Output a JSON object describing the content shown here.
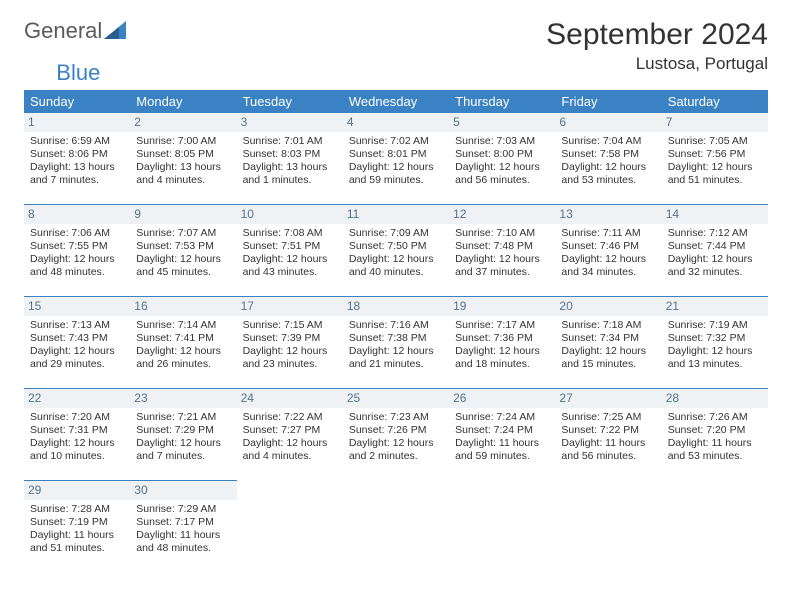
{
  "logo": {
    "word1": "General",
    "word2": "Blue"
  },
  "title": "September 2024",
  "location": "Lustosa, Portugal",
  "colors": {
    "header_bg": "#3b82c4",
    "header_text": "#ffffff",
    "daynum_bg": "#eef2f4",
    "daynum_text": "#58728c",
    "body_text": "#333333",
    "rule": "#3b82c4"
  },
  "weekdays": [
    "Sunday",
    "Monday",
    "Tuesday",
    "Wednesday",
    "Thursday",
    "Friday",
    "Saturday"
  ],
  "weeks": [
    [
      {
        "n": "1",
        "sr": "Sunrise: 6:59 AM",
        "ss": "Sunset: 8:06 PM",
        "d1": "Daylight: 13 hours",
        "d2": "and 7 minutes."
      },
      {
        "n": "2",
        "sr": "Sunrise: 7:00 AM",
        "ss": "Sunset: 8:05 PM",
        "d1": "Daylight: 13 hours",
        "d2": "and 4 minutes."
      },
      {
        "n": "3",
        "sr": "Sunrise: 7:01 AM",
        "ss": "Sunset: 8:03 PM",
        "d1": "Daylight: 13 hours",
        "d2": "and 1 minutes."
      },
      {
        "n": "4",
        "sr": "Sunrise: 7:02 AM",
        "ss": "Sunset: 8:01 PM",
        "d1": "Daylight: 12 hours",
        "d2": "and 59 minutes."
      },
      {
        "n": "5",
        "sr": "Sunrise: 7:03 AM",
        "ss": "Sunset: 8:00 PM",
        "d1": "Daylight: 12 hours",
        "d2": "and 56 minutes."
      },
      {
        "n": "6",
        "sr": "Sunrise: 7:04 AM",
        "ss": "Sunset: 7:58 PM",
        "d1": "Daylight: 12 hours",
        "d2": "and 53 minutes."
      },
      {
        "n": "7",
        "sr": "Sunrise: 7:05 AM",
        "ss": "Sunset: 7:56 PM",
        "d1": "Daylight: 12 hours",
        "d2": "and 51 minutes."
      }
    ],
    [
      {
        "n": "8",
        "sr": "Sunrise: 7:06 AM",
        "ss": "Sunset: 7:55 PM",
        "d1": "Daylight: 12 hours",
        "d2": "and 48 minutes."
      },
      {
        "n": "9",
        "sr": "Sunrise: 7:07 AM",
        "ss": "Sunset: 7:53 PM",
        "d1": "Daylight: 12 hours",
        "d2": "and 45 minutes."
      },
      {
        "n": "10",
        "sr": "Sunrise: 7:08 AM",
        "ss": "Sunset: 7:51 PM",
        "d1": "Daylight: 12 hours",
        "d2": "and 43 minutes."
      },
      {
        "n": "11",
        "sr": "Sunrise: 7:09 AM",
        "ss": "Sunset: 7:50 PM",
        "d1": "Daylight: 12 hours",
        "d2": "and 40 minutes."
      },
      {
        "n": "12",
        "sr": "Sunrise: 7:10 AM",
        "ss": "Sunset: 7:48 PM",
        "d1": "Daylight: 12 hours",
        "d2": "and 37 minutes."
      },
      {
        "n": "13",
        "sr": "Sunrise: 7:11 AM",
        "ss": "Sunset: 7:46 PM",
        "d1": "Daylight: 12 hours",
        "d2": "and 34 minutes."
      },
      {
        "n": "14",
        "sr": "Sunrise: 7:12 AM",
        "ss": "Sunset: 7:44 PM",
        "d1": "Daylight: 12 hours",
        "d2": "and 32 minutes."
      }
    ],
    [
      {
        "n": "15",
        "sr": "Sunrise: 7:13 AM",
        "ss": "Sunset: 7:43 PM",
        "d1": "Daylight: 12 hours",
        "d2": "and 29 minutes."
      },
      {
        "n": "16",
        "sr": "Sunrise: 7:14 AM",
        "ss": "Sunset: 7:41 PM",
        "d1": "Daylight: 12 hours",
        "d2": "and 26 minutes."
      },
      {
        "n": "17",
        "sr": "Sunrise: 7:15 AM",
        "ss": "Sunset: 7:39 PM",
        "d1": "Daylight: 12 hours",
        "d2": "and 23 minutes."
      },
      {
        "n": "18",
        "sr": "Sunrise: 7:16 AM",
        "ss": "Sunset: 7:38 PM",
        "d1": "Daylight: 12 hours",
        "d2": "and 21 minutes."
      },
      {
        "n": "19",
        "sr": "Sunrise: 7:17 AM",
        "ss": "Sunset: 7:36 PM",
        "d1": "Daylight: 12 hours",
        "d2": "and 18 minutes."
      },
      {
        "n": "20",
        "sr": "Sunrise: 7:18 AM",
        "ss": "Sunset: 7:34 PM",
        "d1": "Daylight: 12 hours",
        "d2": "and 15 minutes."
      },
      {
        "n": "21",
        "sr": "Sunrise: 7:19 AM",
        "ss": "Sunset: 7:32 PM",
        "d1": "Daylight: 12 hours",
        "d2": "and 13 minutes."
      }
    ],
    [
      {
        "n": "22",
        "sr": "Sunrise: 7:20 AM",
        "ss": "Sunset: 7:31 PM",
        "d1": "Daylight: 12 hours",
        "d2": "and 10 minutes."
      },
      {
        "n": "23",
        "sr": "Sunrise: 7:21 AM",
        "ss": "Sunset: 7:29 PM",
        "d1": "Daylight: 12 hours",
        "d2": "and 7 minutes."
      },
      {
        "n": "24",
        "sr": "Sunrise: 7:22 AM",
        "ss": "Sunset: 7:27 PM",
        "d1": "Daylight: 12 hours",
        "d2": "and 4 minutes."
      },
      {
        "n": "25",
        "sr": "Sunrise: 7:23 AM",
        "ss": "Sunset: 7:26 PM",
        "d1": "Daylight: 12 hours",
        "d2": "and 2 minutes."
      },
      {
        "n": "26",
        "sr": "Sunrise: 7:24 AM",
        "ss": "Sunset: 7:24 PM",
        "d1": "Daylight: 11 hours",
        "d2": "and 59 minutes."
      },
      {
        "n": "27",
        "sr": "Sunrise: 7:25 AM",
        "ss": "Sunset: 7:22 PM",
        "d1": "Daylight: 11 hours",
        "d2": "and 56 minutes."
      },
      {
        "n": "28",
        "sr": "Sunrise: 7:26 AM",
        "ss": "Sunset: 7:20 PM",
        "d1": "Daylight: 11 hours",
        "d2": "and 53 minutes."
      }
    ],
    [
      {
        "n": "29",
        "sr": "Sunrise: 7:28 AM",
        "ss": "Sunset: 7:19 PM",
        "d1": "Daylight: 11 hours",
        "d2": "and 51 minutes."
      },
      {
        "n": "30",
        "sr": "Sunrise: 7:29 AM",
        "ss": "Sunset: 7:17 PM",
        "d1": "Daylight: 11 hours",
        "d2": "and 48 minutes."
      },
      null,
      null,
      null,
      null,
      null
    ]
  ]
}
